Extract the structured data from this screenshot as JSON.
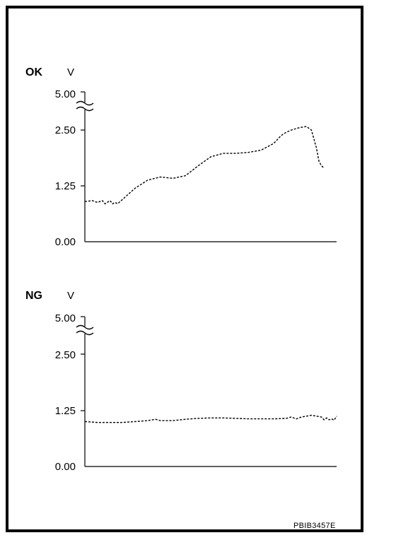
{
  "reference_code": "PBIB3457E",
  "colors": {
    "line": "#000000",
    "background": "#ffffff"
  },
  "chart_data": [
    {
      "type": "line",
      "title": "OK",
      "ylabel": "V",
      "xlabel": "",
      "y_ticks": [
        "5.00",
        "2.50",
        "1.25",
        "0.00"
      ],
      "axis_break": "between 5.00 and 2.50",
      "ylim": [
        0,
        2.5
      ],
      "x_ticks": [],
      "grid": false,
      "line_style": "dashed",
      "series": [
        {
          "x": [
            0,
            3,
            5,
            7,
            8,
            10,
            11,
            12,
            13,
            15,
            17,
            20,
            25,
            30,
            35,
            40,
            45,
            50,
            55,
            60,
            65,
            70,
            75,
            78,
            80,
            82,
            85,
            88,
            90,
            92,
            93,
            94,
            95
          ],
          "values": [
            0.9,
            0.92,
            0.88,
            0.92,
            0.85,
            0.92,
            0.85,
            0.88,
            0.85,
            0.95,
            1.05,
            1.2,
            1.38,
            1.45,
            1.42,
            1.48,
            1.7,
            1.9,
            1.98,
            1.98,
            2.0,
            2.05,
            2.2,
            2.38,
            2.45,
            2.5,
            2.55,
            2.58,
            2.5,
            2.1,
            1.8,
            1.7,
            1.65
          ]
        }
      ]
    },
    {
      "type": "line",
      "title": "NG",
      "ylabel": "V",
      "xlabel": "",
      "y_ticks": [
        "5.00",
        "2.50",
        "1.25",
        "0.00"
      ],
      "axis_break": "between 5.00 and 2.50",
      "ylim": [
        0,
        2.5
      ],
      "x_ticks": [],
      "grid": false,
      "line_style": "dashed",
      "series": [
        {
          "x": [
            0,
            5,
            10,
            15,
            20,
            25,
            28,
            30,
            35,
            40,
            45,
            50,
            55,
            60,
            65,
            70,
            75,
            80,
            82,
            84,
            86,
            88,
            90,
            92,
            94,
            95,
            96,
            97,
            98,
            99,
            100
          ],
          "values": [
            1.0,
            0.98,
            0.98,
            0.98,
            1.0,
            1.02,
            1.05,
            1.02,
            1.02,
            1.05,
            1.07,
            1.08,
            1.08,
            1.07,
            1.06,
            1.06,
            1.06,
            1.07,
            1.1,
            1.06,
            1.1,
            1.12,
            1.14,
            1.12,
            1.1,
            1.04,
            1.08,
            1.04,
            1.06,
            1.03,
            1.12
          ]
        }
      ]
    }
  ]
}
